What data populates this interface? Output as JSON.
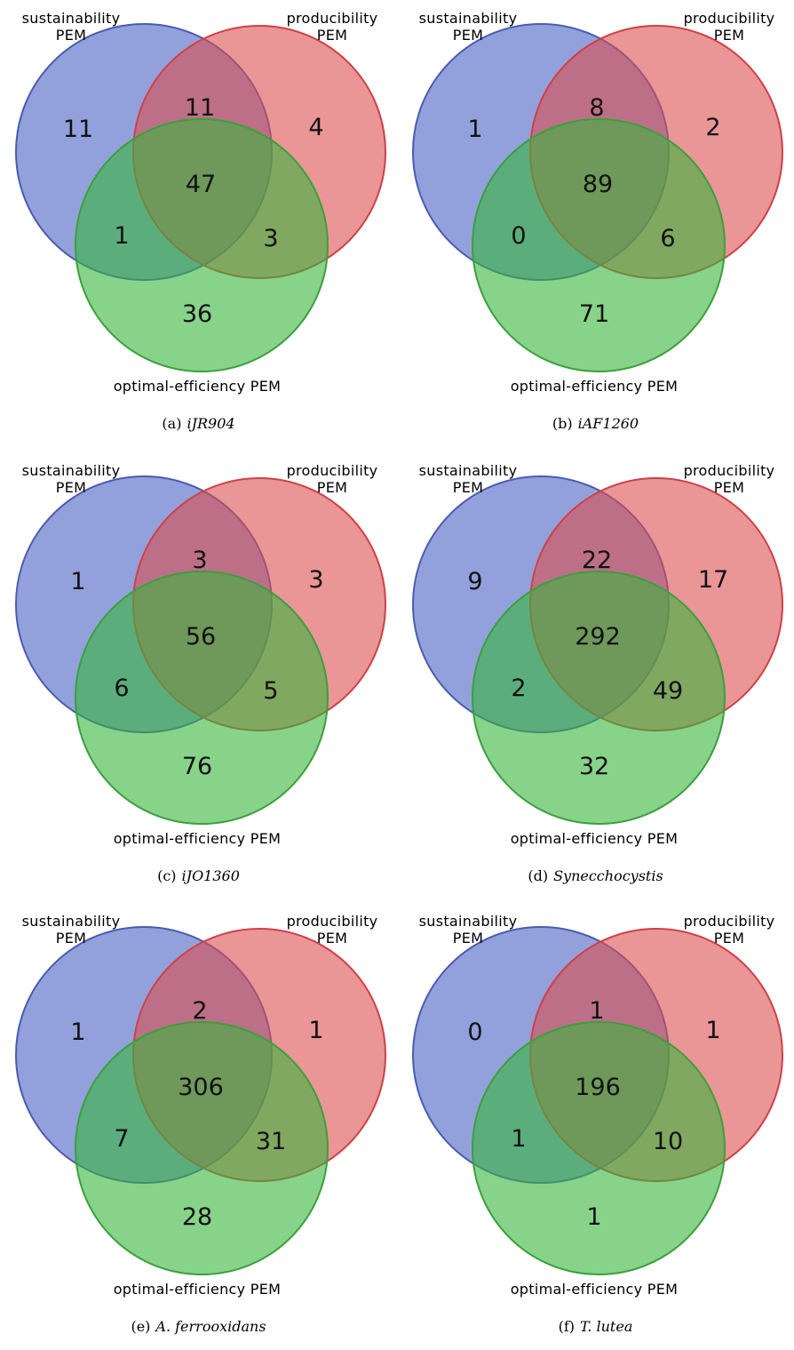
{
  "colors": {
    "sustainability_fill": "#4a63c4",
    "sustainability_stroke": "#4a5bb0",
    "producibility_fill": "#dc4e50",
    "producibility_stroke": "#d04046",
    "optimal_fill": "#38b53c",
    "optimal_stroke": "#3aa03c"
  },
  "set_labels": {
    "sustainability_line1": "sustainability",
    "sustainability_line2": "PEM",
    "producibility_line1": "producibility",
    "producibility_line2": "PEM",
    "optimal": "optimal-efficiency PEM"
  },
  "panels": [
    {
      "caption_id": "(a)",
      "caption_name": "iJR904",
      "counts": {
        "sustainability_only": "11",
        "producibility_only": "4",
        "optimal_only": "36",
        "sust_prod": "11",
        "sust_opt": "1",
        "prod_opt": "3",
        "all_three": "47"
      }
    },
    {
      "caption_id": "(b)",
      "caption_name": "iAF1260",
      "counts": {
        "sustainability_only": "1",
        "producibility_only": "2",
        "optimal_only": "71",
        "sust_prod": "8",
        "sust_opt": "0",
        "prod_opt": "6",
        "all_three": "89"
      }
    },
    {
      "caption_id": "(c)",
      "caption_name": "iJO1360",
      "counts": {
        "sustainability_only": "1",
        "producibility_only": "3",
        "optimal_only": "76",
        "sust_prod": "3",
        "sust_opt": "6",
        "prod_opt": "5",
        "all_three": "56"
      }
    },
    {
      "caption_id": "(d)",
      "caption_name": "Synecchocystis",
      "counts": {
        "sustainability_only": "9",
        "producibility_only": "17",
        "optimal_only": "32",
        "sust_prod": "22",
        "sust_opt": "2",
        "prod_opt": "49",
        "all_three": "292"
      }
    },
    {
      "caption_id": "(e)",
      "caption_name": "A. ferrooxidans",
      "counts": {
        "sustainability_only": "1",
        "producibility_only": "1",
        "optimal_only": "28",
        "sust_prod": "2",
        "sust_opt": "7",
        "prod_opt": "31",
        "all_three": "306"
      }
    },
    {
      "caption_id": "(f)",
      "caption_name": "T. lutea",
      "counts": {
        "sustainability_only": "0",
        "producibility_only": "1",
        "optimal_only": "1",
        "sust_prod": "1",
        "sust_opt": "1",
        "prod_opt": "10",
        "all_three": "196"
      }
    }
  ]
}
